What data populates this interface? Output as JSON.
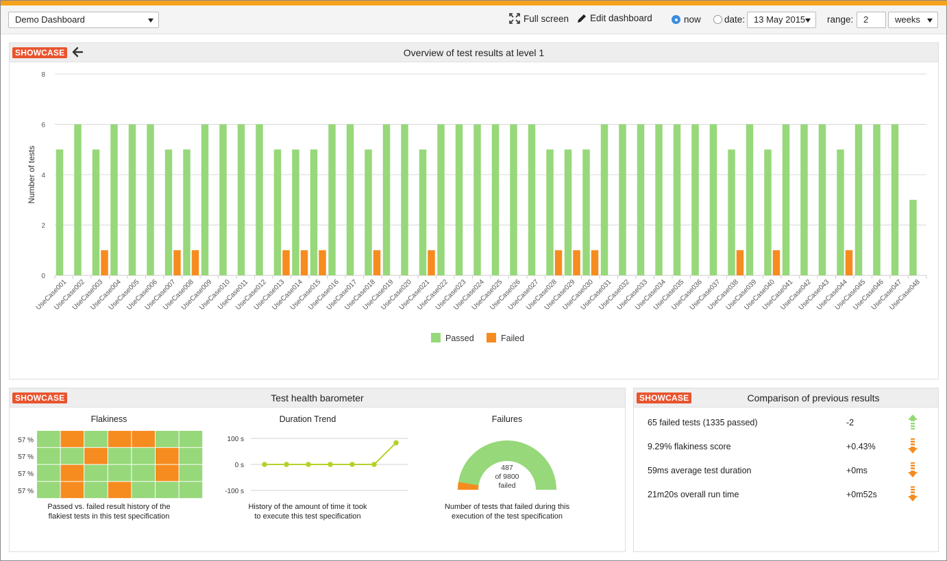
{
  "toolbar": {
    "dashboard_select": "Demo Dashboard",
    "full_screen": "Full screen",
    "edit_dashboard": "Edit dashboard",
    "now_label": "now",
    "date_label": "date:",
    "date_value": "13 May 2015",
    "range_label": "range:",
    "range_value": "2",
    "range_unit": "weeks"
  },
  "main_panel": {
    "badge": "SHOWCASE",
    "title": "Overview of test results at level 1"
  },
  "chart_data": {
    "type": "bar",
    "ylabel": "Number of tests",
    "ylim": [
      0,
      8
    ],
    "yticks": [
      0,
      2,
      4,
      6,
      8
    ],
    "grid": true,
    "legend_position": "bottom",
    "categories": [
      "UseCase001",
      "UseCase002",
      "UseCase003",
      "UseCase004",
      "UseCase005",
      "UseCase006",
      "UseCase007",
      "UseCase008",
      "UseCase009",
      "UseCase010",
      "UseCase011",
      "UseCase012",
      "UseCase013",
      "UseCase014",
      "UseCase015",
      "UseCase016",
      "UseCase017",
      "UseCase018",
      "UseCase019",
      "UseCase020",
      "UseCase021",
      "UseCase022",
      "UseCase023",
      "UseCase024",
      "UseCase025",
      "UseCase026",
      "UseCase027",
      "UseCase028",
      "UseCase029",
      "UseCase030",
      "UseCase031",
      "UseCase032",
      "UseCase033",
      "UseCase034",
      "UseCase035",
      "UseCase036",
      "UseCase037",
      "UseCase038",
      "UseCase039",
      "UseCase040",
      "UseCase041",
      "UseCase042",
      "UseCase043",
      "UseCase044",
      "UseCase045",
      "UseCase046",
      "UseCase047",
      "UseCase048"
    ],
    "series": [
      {
        "name": "Passed",
        "color": "#97d87a",
        "values": [
          5,
          6,
          5,
          6,
          6,
          6,
          5,
          5,
          6,
          6,
          6,
          6,
          5,
          5,
          5,
          6,
          6,
          5,
          6,
          6,
          5,
          6,
          6,
          6,
          6,
          6,
          6,
          5,
          5,
          5,
          6,
          6,
          6,
          6,
          6,
          6,
          6,
          5,
          6,
          5,
          6,
          6,
          6,
          5,
          6,
          6,
          6,
          3
        ]
      },
      {
        "name": "Failed",
        "color": "#f68c1f",
        "values": [
          0,
          0,
          1,
          0,
          0,
          0,
          1,
          1,
          0,
          0,
          0,
          0,
          1,
          1,
          1,
          0,
          0,
          1,
          0,
          0,
          1,
          0,
          0,
          0,
          0,
          0,
          0,
          1,
          1,
          1,
          0,
          0,
          0,
          0,
          0,
          0,
          0,
          1,
          0,
          1,
          0,
          0,
          0,
          1,
          0,
          0,
          0,
          0
        ]
      }
    ]
  },
  "health_panel": {
    "badge": "SHOWCASE",
    "title": "Test health barometer",
    "flakiness": {
      "title": "Flakiness",
      "row_labels": [
        "57 %",
        "57 %",
        "57 %",
        "57 %"
      ],
      "grid": [
        [
          "p",
          "f",
          "p",
          "f",
          "f",
          "p",
          "p"
        ],
        [
          "p",
          "p",
          "f",
          "p",
          "p",
          "f",
          "p"
        ],
        [
          "p",
          "f",
          "p",
          "p",
          "p",
          "f",
          "p"
        ],
        [
          "p",
          "f",
          "p",
          "f",
          "p",
          "p",
          "p"
        ]
      ],
      "color_passed": "#97d87a",
      "color_failed": "#f68c1f",
      "caption_line1": "Passed vs. failed result history of the",
      "caption_line2": "flakiest tests in this test specification"
    },
    "duration": {
      "title": "Duration Trend",
      "yticks": [
        "100 s",
        "0 s",
        "-100 s"
      ],
      "ylim": [
        -100,
        100
      ],
      "values": [
        0,
        0,
        0,
        0,
        0,
        0,
        83
      ],
      "color": "#b5d12a",
      "caption_line1": "History of the amount of time it took",
      "caption_line2": "to execute this test specification"
    },
    "failures": {
      "title": "Failures",
      "failed": 487,
      "total": 9800,
      "value_text": "487",
      "of_text": "of 9800",
      "failed_text": "failed",
      "color_fill": "#97d87a",
      "color_failed": "#f68c1f",
      "caption_line1": "Number of tests that failed during this",
      "caption_line2": "execution of the test specification"
    }
  },
  "comparison_panel": {
    "badge": "SHOWCASE",
    "title": "Comparison of previous results",
    "rows": [
      {
        "text": "65 failed tests (1335 passed)",
        "delta": "-2",
        "direction": "up",
        "color": "#97d87a"
      },
      {
        "text": "9.29% flakiness score",
        "delta": "+0.43%",
        "direction": "down",
        "color": "#f68c1f"
      },
      {
        "text": "59ms average test duration",
        "delta": "+0ms",
        "direction": "down",
        "color": "#f68c1f"
      },
      {
        "text": "21m20s overall run time",
        "delta": "+0m52s",
        "direction": "down",
        "color": "#f68c1f"
      }
    ]
  }
}
